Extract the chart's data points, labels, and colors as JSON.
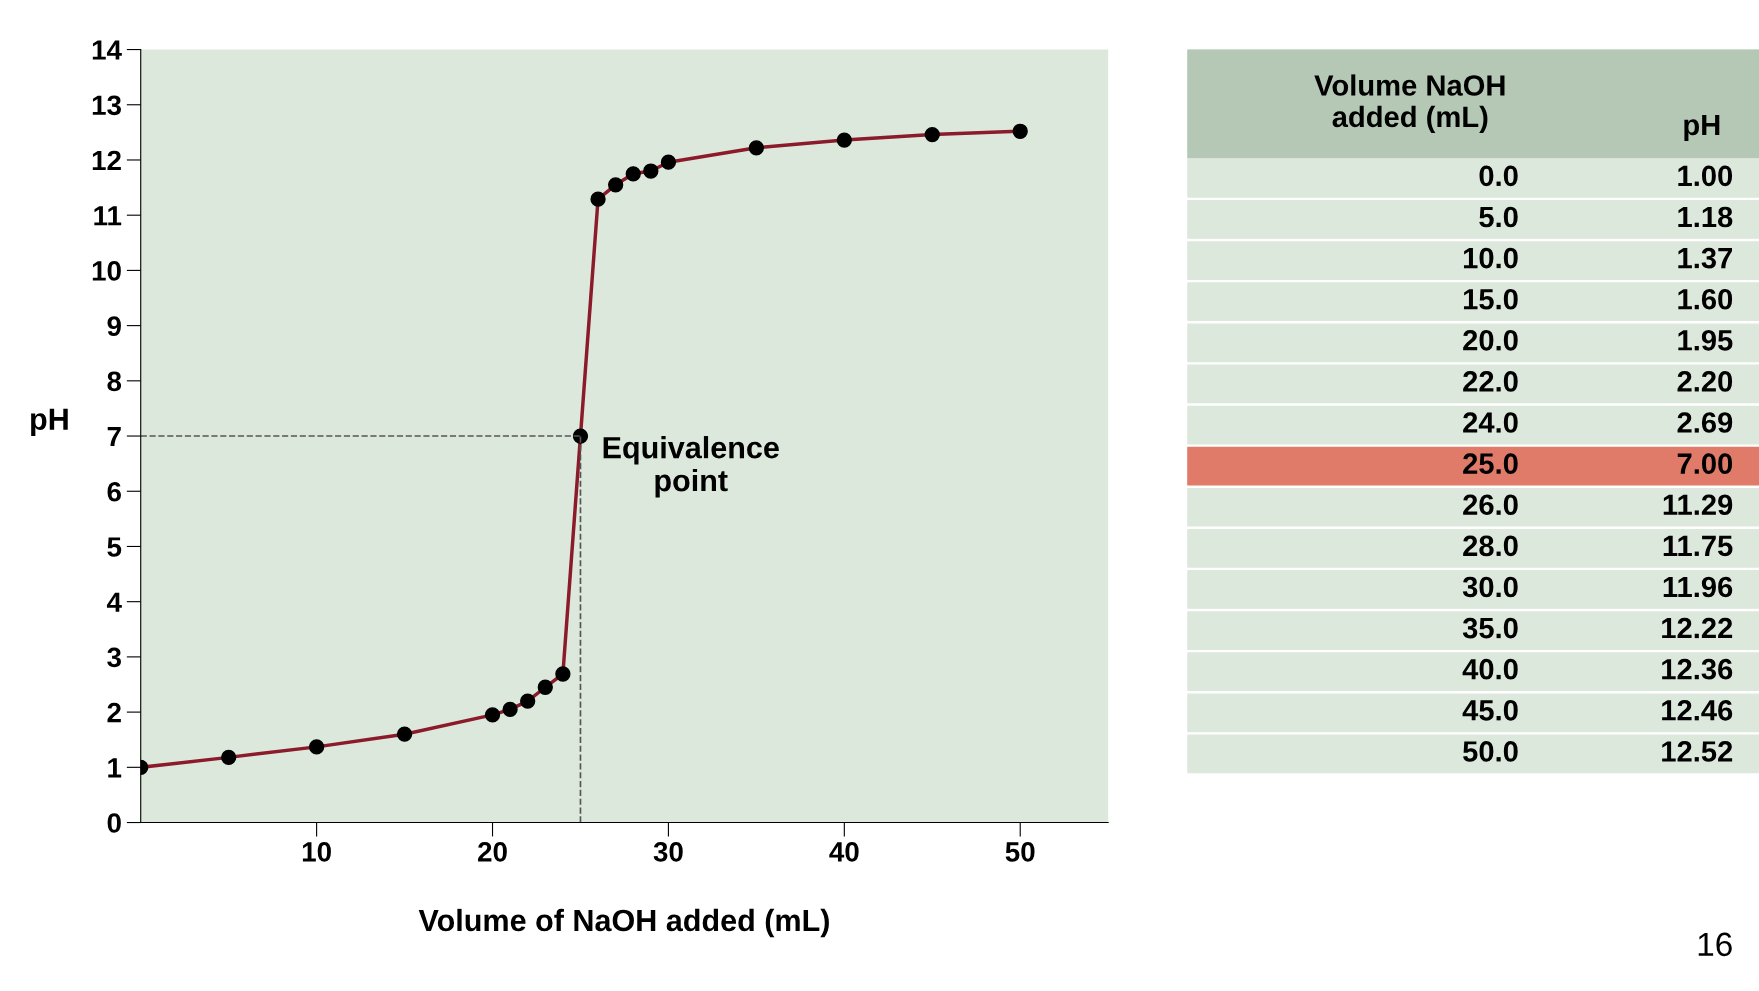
{
  "chart_data": [
    {
      "type": "line",
      "xlabel": "Volume of NaOH added (mL)",
      "ylabel": "pH",
      "series": [
        {
          "color": "#8b1a2a",
          "x": [
            0,
            5,
            10,
            15,
            20,
            21,
            22,
            23,
            24,
            25,
            26,
            27,
            28,
            29,
            30,
            35,
            40,
            45,
            50
          ],
          "values": [
            1.0,
            1.18,
            1.37,
            1.6,
            1.95,
            2.05,
            2.2,
            2.45,
            2.69,
            7.0,
            11.29,
            11.55,
            11.75,
            11.8,
            11.96,
            12.22,
            12.36,
            12.46,
            12.52
          ]
        }
      ],
      "xlim": [
        0,
        55
      ],
      "xticks": [
        10,
        20,
        30,
        40,
        50
      ],
      "ylim": [
        0,
        14
      ],
      "yticks": [
        0,
        1,
        2,
        3,
        4,
        5,
        6,
        7,
        8,
        9,
        10,
        11,
        12,
        13,
        14
      ],
      "marker": "circle",
      "ref_lines": [
        {
          "axis": "y",
          "value": 7,
          "line_style": "dashed",
          "color": "#555555"
        },
        {
          "axis": "x",
          "value": 25,
          "line_style": "dashed",
          "color": "#555555"
        }
      ],
      "annotations": [
        {
          "text": "Equivalence\npoint",
          "x": 25,
          "y": 7
        }
      ]
    },
    {
      "type": "other",
      "annotations": [
        "Volume NaOH\nadded (mL)",
        "pH",
        "0.0",
        "1.00",
        "5.0",
        "1.18",
        "10.0",
        "1.37",
        "15.0",
        "1.60",
        "20.0",
        "1.95",
        "22.0",
        "2.20",
        "24.0",
        "2.69",
        "25.0",
        "7.00",
        "26.0",
        "11.29",
        "28.0",
        "11.75",
        "30.0",
        "11.96",
        "35.0",
        "12.22",
        "40.0",
        "12.36",
        "45.0",
        "12.46",
        "50.0",
        "12.52",
        "16"
      ]
    }
  ]
}
